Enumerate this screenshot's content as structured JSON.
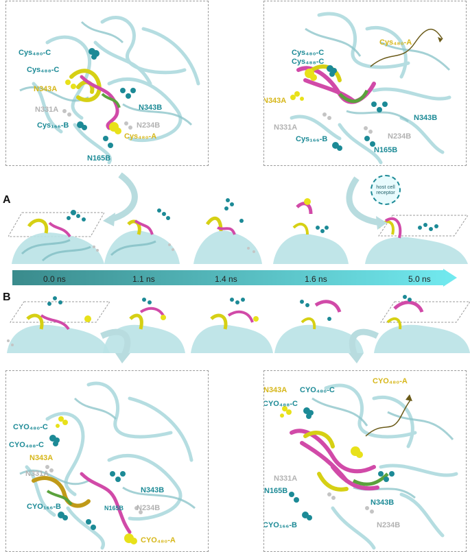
{
  "section_labels": {
    "a": "A",
    "b": "B"
  },
  "timeline": {
    "times": [
      "0.0 ns",
      "1.1 ns",
      "1.4 ns",
      "1.6 ns",
      "5.0 ns"
    ],
    "gradient_start": "#3a8b8c",
    "gradient_end": "#72eaf0"
  },
  "host_receptor_label": "host cell receptor",
  "colors": {
    "teal": "#1c8a96",
    "gold": "#d6b618",
    "grey": "#b2b2b2",
    "protein": "#a9d8dc",
    "magenta": "#d14aa8",
    "green": "#5aa23c"
  },
  "panels": {
    "top_left": {
      "labels": {
        "cys480c": "Cys₄₈₀-C",
        "cys488c": "Cys₄₈₈-C",
        "n343a": "N343A",
        "n331a": "N331A",
        "cys166b": "Cys₁₆₆-B",
        "n165b": "N165B",
        "n343b": "N343B",
        "n234b": "N234B",
        "cys480a": "Cys₄₈₀-A"
      }
    },
    "top_right": {
      "labels": {
        "cys480a": "Cys₄₈₀-A",
        "cys480c": "Cys₄₈₀-C",
        "cys488c": "Cys₄₈₈-C",
        "n343a": "N343A",
        "n331a": "N331A",
        "n343b": "N343B",
        "n234b": "N234B",
        "cys166b": "Cys₁₆₆-B",
        "n165b": "N165B"
      }
    },
    "bottom_left": {
      "labels": {
        "cyo480c": "CYO₄₈₀-C",
        "cyo488c": "CYO₄₈₈-C",
        "n343a": "N343A",
        "n331a": "N331A",
        "n343b": "N343B",
        "cyo166b": "CYO₁₆₆-B",
        "n165b": "N165B",
        "n234b": "N234B",
        "cyo480a": "CYO₄₈₀-A"
      }
    },
    "bottom_right": {
      "labels": {
        "n343a": "N343A",
        "cyo480c": "CYO₄₈₀-C",
        "cyo480a": "CYO₄₈₀-A",
        "cyo488c": "CYO₄₈₈-C",
        "n331a": "N331A",
        "n165b": "N165B",
        "n343b": "N343B",
        "cyo166b": "CYO₁₆₆-B",
        "n234b": "N234B"
      }
    }
  }
}
